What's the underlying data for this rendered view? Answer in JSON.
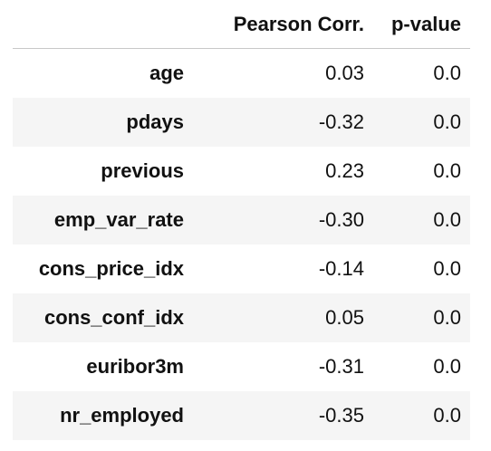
{
  "table": {
    "columns": [
      "",
      "Pearson Corr.",
      "p-value"
    ],
    "rows": [
      {
        "label": "age",
        "corr": "0.03",
        "pvalue": "0.0"
      },
      {
        "label": "pdays",
        "corr": "-0.32",
        "pvalue": "0.0"
      },
      {
        "label": "previous",
        "corr": "0.23",
        "pvalue": "0.0"
      },
      {
        "label": "emp_var_rate",
        "corr": "-0.30",
        "pvalue": "0.0"
      },
      {
        "label": "cons_price_idx",
        "corr": "-0.14",
        "pvalue": "0.0"
      },
      {
        "label": "cons_conf_idx",
        "corr": "0.05",
        "pvalue": "0.0"
      },
      {
        "label": "euribor3m",
        "corr": "-0.31",
        "pvalue": "0.0"
      },
      {
        "label": "nr_employed",
        "corr": "-0.35",
        "pvalue": "0.0"
      }
    ]
  },
  "colors": {
    "stripe": "#f5f5f5",
    "header_rule": "#c8c8c8",
    "text": "#111111"
  }
}
